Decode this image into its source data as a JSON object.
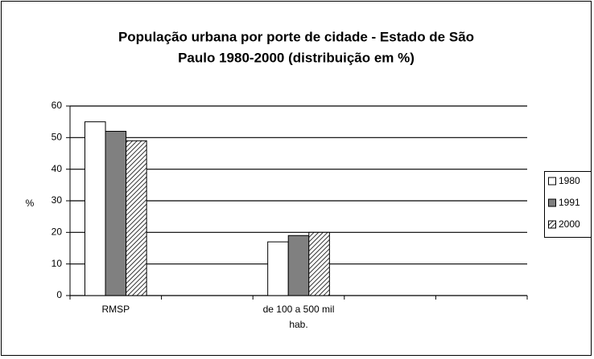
{
  "chart_data": {
    "type": "bar",
    "title": [
      "População urbana por porte de cidade - Estado de São",
      "Paulo 1980-2000 (distribuição em %)"
    ],
    "ylabel": "%",
    "categories": [
      "RMSP",
      null,
      "de 100 a 500 mil hab.",
      null,
      null
    ],
    "series": [
      {
        "name": "1980",
        "color": "#ffffff",
        "values": [
          55,
          null,
          17,
          null,
          null
        ]
      },
      {
        "name": "1991",
        "color": "#808080",
        "values": [
          52,
          null,
          19,
          null,
          null
        ]
      },
      {
        "name": "2000",
        "color": "#ffffff",
        "hatch": true,
        "values": [
          49,
          null,
          20,
          null,
          null
        ]
      }
    ],
    "ylim": [
      0,
      60
    ],
    "yticks": [
      0,
      10,
      20,
      30,
      40,
      50,
      60
    ],
    "grid": true,
    "legend": "right"
  }
}
